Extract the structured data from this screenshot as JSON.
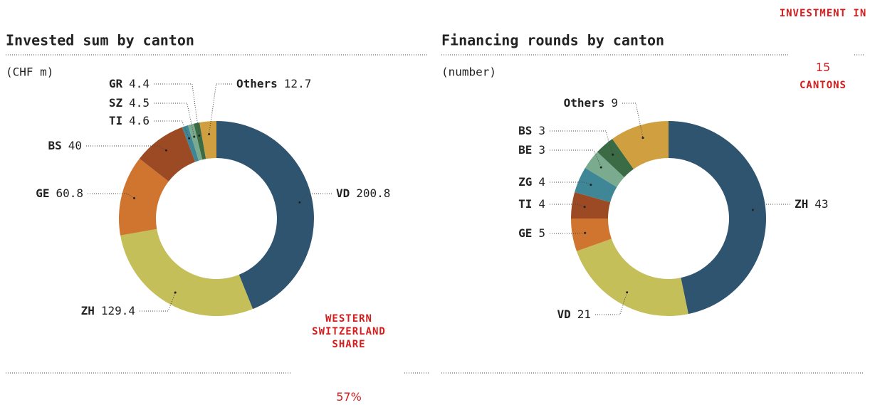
{
  "chart_data": [
    {
      "type": "donut",
      "title": "Invested sum by canton",
      "subtitle": "(CHF m)",
      "categories": [
        "VD",
        "ZH",
        "GE",
        "BS",
        "TI",
        "SZ",
        "GR",
        "Others"
      ],
      "values": [
        200.8,
        129.4,
        60.8,
        40,
        4.6,
        4.5,
        4.4,
        12.7
      ],
      "colors": [
        "#2f5470",
        "#c5bf5a",
        "#d07530",
        "#9b4a24",
        "#3f8696",
        "#7aab8e",
        "#3b6b45",
        "#d09f40"
      ],
      "callout": {
        "lines": [
          "WESTERN",
          "SWITZERLAND",
          "SHARE"
        ],
        "figure": "57%"
      }
    },
    {
      "type": "donut",
      "title": "Financing rounds by canton",
      "subtitle": "(number)",
      "categories": [
        "ZH",
        "VD",
        "GE",
        "TI",
        "ZG",
        "BE",
        "BS",
        "Others"
      ],
      "values": [
        43,
        21,
        5,
        4,
        4,
        3,
        3,
        9
      ],
      "colors": [
        "#2f5470",
        "#c5bf5a",
        "#d07530",
        "#9b4a24",
        "#3f8696",
        "#7aab8e",
        "#3b6b45",
        "#d09f40"
      ],
      "callout": {
        "lines": [
          "INVESTMENT IN",
          "CANTONS"
        ],
        "figure": "15"
      }
    }
  ]
}
